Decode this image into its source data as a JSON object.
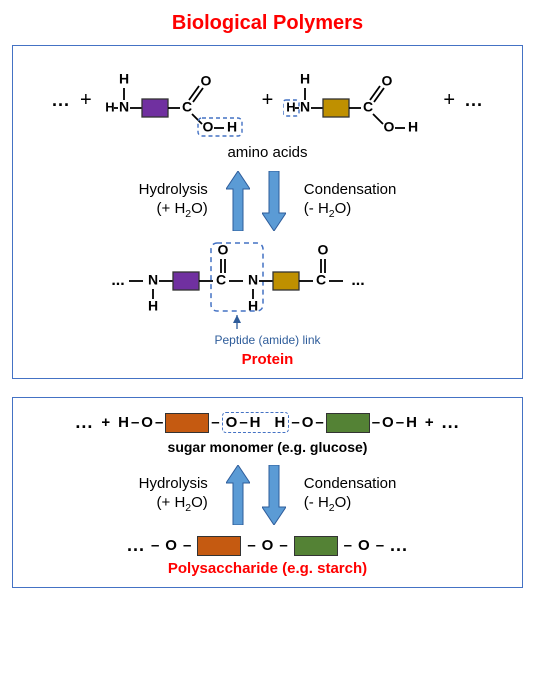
{
  "title": {
    "text": "Biological Polymers",
    "color": "#ff0000"
  },
  "colors": {
    "panel_border": "#4472c4",
    "dashed": "#4472c4",
    "arrow_fill": "#5b9bd5",
    "peptide_text": "#2e5c9a",
    "product_text": "#ff0000",
    "black": "#000000",
    "purple": "#7030a0",
    "gold": "#bf9000",
    "orange": "#c55a11",
    "green": "#548235"
  },
  "protein": {
    "monomer_label": "amino acids",
    "hydrolysis": {
      "label": "Hydrolysis",
      "sub": "(+ H",
      "sub2": "O)"
    },
    "condensation": {
      "label": "Condensation",
      "sub": "(- H",
      "sub2": "O)"
    },
    "peptide_link": "Peptide\n(amide) link",
    "product": "Protein",
    "atoms": {
      "H": "H",
      "N": "N",
      "C": "C",
      "O": "O"
    }
  },
  "poly": {
    "monomer_label": "sugar monomer (e.g. glucose)",
    "hydrolysis": {
      "label": "Hydrolysis",
      "sub": "(+ H",
      "sub2": "O)"
    },
    "condensation": {
      "label": "Condensation",
      "sub": "(- H",
      "sub2": "O)"
    },
    "product": "Polysaccharide (e.g. starch)",
    "frags": {
      "H": "H",
      "O": "O",
      "dash": "–"
    }
  },
  "symbols": {
    "ellipsis": "...",
    "plus": "+"
  }
}
